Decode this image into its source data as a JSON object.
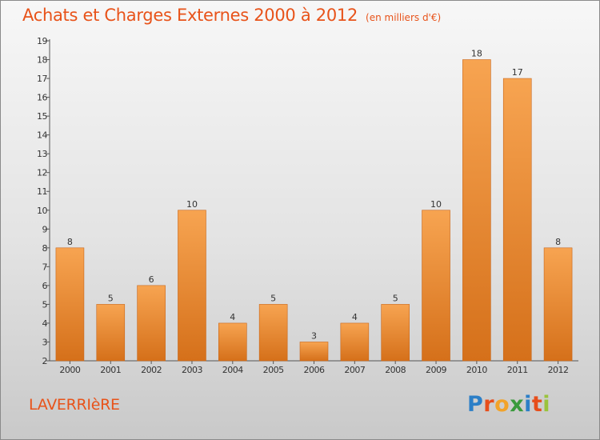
{
  "header": {
    "title": "Achats et Charges Externes 2000 à 2012",
    "unit": "(en milliers d'€)"
  },
  "footer": {
    "commune": "LAVERRIèRE",
    "logo": {
      "letters": [
        "P",
        "r",
        "o",
        "x",
        "i",
        "t",
        "i"
      ],
      "colors": [
        "#2c7fc7",
        "#e74e1b",
        "#f2a32a",
        "#3a9a3c",
        "#2c7fc7",
        "#e74e1b",
        "#9ac33c"
      ]
    }
  },
  "colors": {
    "title": "#e8531a",
    "bar_top": "#f7a451",
    "bar_bottom": "#d5701a",
    "axis": "#555555"
  },
  "chart_data": {
    "type": "bar",
    "title": "Achats et Charges Externes 2000 à 2012",
    "subtitle": "(en milliers d'€)",
    "categories": [
      "2000",
      "2001",
      "2002",
      "2003",
      "2004",
      "2005",
      "2006",
      "2007",
      "2008",
      "2009",
      "2010",
      "2011",
      "2012"
    ],
    "values": [
      8,
      5,
      6,
      10,
      4,
      5,
      3,
      4,
      5,
      10,
      18,
      17,
      8
    ],
    "ylim": [
      2,
      19
    ],
    "yticks": [
      2,
      3,
      4,
      5,
      6,
      7,
      8,
      9,
      10,
      11,
      12,
      13,
      14,
      15,
      16,
      17,
      18,
      19
    ],
    "grid": false,
    "legend": "none",
    "xlabel": "",
    "ylabel": ""
  }
}
